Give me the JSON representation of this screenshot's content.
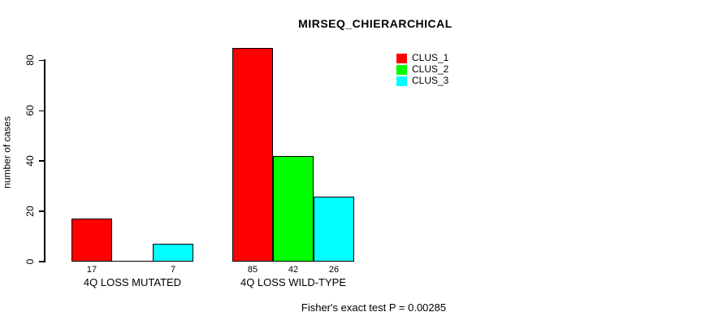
{
  "chart_data": {
    "type": "bar",
    "title": "MIRSEQ_CHIERARCHICAL",
    "ylabel": "number of cases",
    "xlabel": "",
    "yticks": [
      0,
      20,
      40,
      60,
      80
    ],
    "ylim": [
      0,
      85
    ],
    "grid": false,
    "legend_position": "top-right-inside",
    "categories": [
      "4Q LOSS MUTATED",
      "4Q LOSS WILD-TYPE"
    ],
    "series": [
      {
        "name": "CLUS_1",
        "color": "#FF0000",
        "values": [
          17,
          85
        ]
      },
      {
        "name": "CLUS_2",
        "color": "#00FF00",
        "values": [
          0,
          42
        ]
      },
      {
        "name": "CLUS_3",
        "color": "#00FFFF",
        "values": [
          7,
          26
        ]
      }
    ],
    "bar_value_labels": [
      [
        "17",
        "",
        "7"
      ],
      [
        "85",
        "42",
        "26"
      ]
    ],
    "caption": "Fisher's exact test P = 0.00285",
    "background_color": "#FFFFFF",
    "axis_color": "#000000",
    "bar_border_color": "#000000"
  }
}
